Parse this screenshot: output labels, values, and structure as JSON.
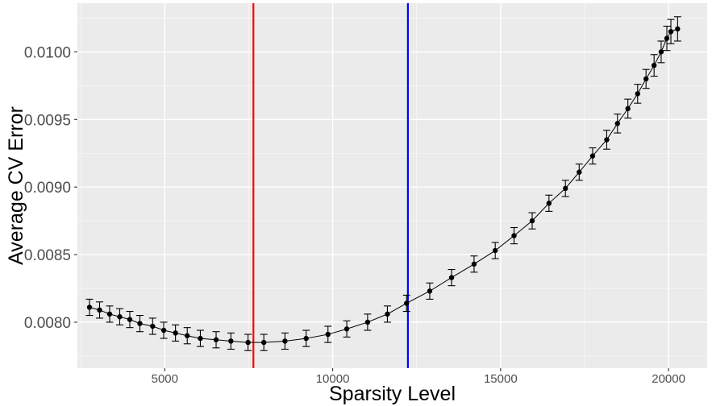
{
  "chart_data": {
    "type": "line",
    "title": "",
    "xlabel": "Sparsity Level",
    "ylabel": "Average CV Error",
    "xlim": [
      2400,
      21150
    ],
    "ylim": [
      0.00766,
      0.01036
    ],
    "grid": true,
    "x_ticks": [
      5000,
      10000,
      15000,
      20000
    ],
    "x_tick_labels": [
      "5000",
      "10000",
      "15000",
      "20000"
    ],
    "y_ticks": [
      0.008,
      0.0085,
      0.009,
      0.0095,
      0.01
    ],
    "y_tick_labels": [
      "0.0080",
      "0.0085",
      "0.0090",
      "0.0095",
      "0.0100"
    ],
    "vlines": [
      {
        "x": 7640,
        "color": "#ff0000"
      },
      {
        "x": 12240,
        "color": "#0000ff"
      }
    ],
    "series": [
      {
        "x": [
          2760,
          3060,
          3360,
          3660,
          3960,
          4260,
          4640,
          4970,
          5320,
          5670,
          6060,
          6530,
          6970,
          7480,
          7950,
          8580,
          9210,
          9860,
          10420,
          11040,
          11630,
          12200,
          12890,
          13540,
          14210,
          14840,
          15400,
          15940,
          16440,
          16930,
          17340,
          17740,
          18160,
          18480,
          18790,
          19080,
          19330,
          19570,
          19780,
          19950,
          20070,
          20270
        ],
        "y": [
          0.00811,
          0.00809,
          0.00806,
          0.00804,
          0.00802,
          0.00799,
          0.00797,
          0.00794,
          0.00792,
          0.0079,
          0.00788,
          0.00787,
          0.00786,
          0.00785,
          0.00785,
          0.00786,
          0.00788,
          0.00791,
          0.00795,
          0.008,
          0.00806,
          0.00814,
          0.00823,
          0.00833,
          0.00843,
          0.00853,
          0.00864,
          0.00875,
          0.00888,
          0.00899,
          0.00911,
          0.00923,
          0.00935,
          0.00947,
          0.00958,
          0.00969,
          0.0098,
          0.0099,
          0.01,
          0.0101,
          0.01015,
          0.01017
        ],
        "err": [
          6e-05,
          6e-05,
          6e-05,
          6e-05,
          6e-05,
          6e-05,
          6e-05,
          6e-05,
          6e-05,
          6e-05,
          6e-05,
          6e-05,
          6e-05,
          6e-05,
          6e-05,
          6e-05,
          6e-05,
          6e-05,
          6e-05,
          6e-05,
          6e-05,
          6e-05,
          6e-05,
          6e-05,
          6e-05,
          6e-05,
          6e-05,
          6e-05,
          6e-05,
          6e-05,
          6e-05,
          6e-05,
          7e-05,
          7e-05,
          7e-05,
          7e-05,
          7e-05,
          8e-05,
          8e-05,
          9e-05,
          9e-05,
          9e-05
        ],
        "color": "#000000"
      }
    ]
  },
  "colors": {
    "panel_background": "#ebebeb",
    "grid_major": "#ffffff",
    "grid_minor": "#f7f7f7",
    "axis_text": "#4d4d4d",
    "axis_title": "#000000"
  }
}
